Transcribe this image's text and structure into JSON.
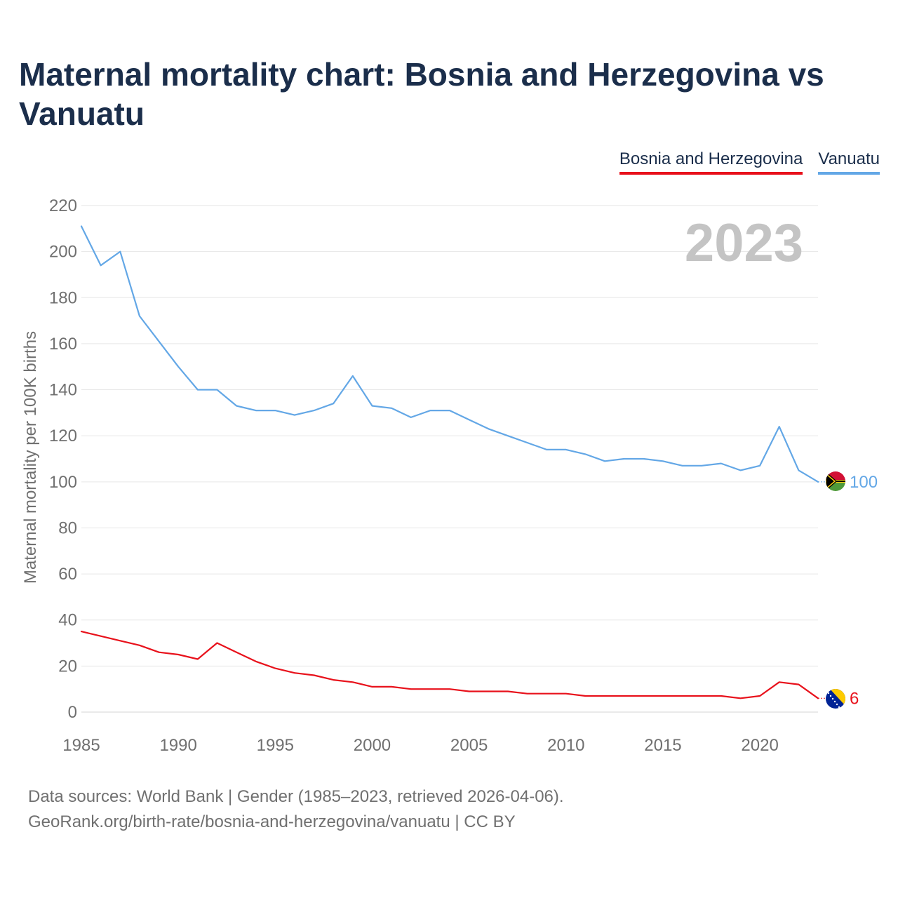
{
  "header": {
    "title": "Maternal mortality chart: Bosnia and Herzegovina vs Vanuatu"
  },
  "legend": {
    "items": [
      {
        "label": "Bosnia and Herzegovina",
        "color": "#e8111b"
      },
      {
        "label": "Vanuatu",
        "color": "#63a7e6"
      }
    ]
  },
  "footer": {
    "line1": "Data sources: World Bank | Gender (1985–2023, retrieved 2026-04-06).",
    "line2": "GeoRank.org/birth-rate/bosnia-and-herzegovina/vanuatu | CC BY"
  },
  "chart_data": {
    "type": "line",
    "title": "Maternal mortality chart: Bosnia and Herzegovina vs Vanuatu",
    "xlabel": "",
    "ylabel": "Maternal mortality per 100K births",
    "year_watermark": "2023",
    "xlim": [
      1985,
      2023
    ],
    "ylim": [
      0,
      220
    ],
    "x_ticks": [
      1985,
      1990,
      1995,
      2000,
      2005,
      2010,
      2015,
      2020
    ],
    "y_ticks": [
      0,
      20,
      40,
      60,
      80,
      100,
      120,
      140,
      160,
      180,
      200,
      220
    ],
    "grid": true,
    "legend_position": "top-right",
    "x": [
      1985,
      1986,
      1987,
      1988,
      1989,
      1990,
      1991,
      1992,
      1993,
      1994,
      1995,
      1996,
      1997,
      1998,
      1999,
      2000,
      2001,
      2002,
      2003,
      2004,
      2005,
      2006,
      2007,
      2008,
      2009,
      2010,
      2011,
      2012,
      2013,
      2014,
      2015,
      2016,
      2017,
      2018,
      2019,
      2020,
      2021,
      2022,
      2023
    ],
    "series": [
      {
        "name": "Vanuatu",
        "color": "#63a7e6",
        "end_label": "100",
        "flag": "vanuatu-flag",
        "values": [
          211,
          194,
          200,
          172,
          161,
          150,
          140,
          140,
          133,
          131,
          131,
          129,
          131,
          134,
          146,
          133,
          132,
          128,
          131,
          131,
          127,
          123,
          120,
          117,
          114,
          114,
          112,
          109,
          110,
          110,
          109,
          107,
          107,
          108,
          105,
          107,
          124,
          105,
          100
        ]
      },
      {
        "name": "Bosnia and Herzegovina",
        "color": "#e8111b",
        "end_label": "6",
        "flag": "bosnia-and-herzegovina-flag",
        "values": [
          35,
          33,
          31,
          29,
          26,
          25,
          23,
          30,
          26,
          22,
          19,
          17,
          16,
          14,
          13,
          11,
          11,
          10,
          10,
          10,
          9,
          9,
          9,
          8,
          8,
          8,
          7,
          7,
          7,
          7,
          7,
          7,
          7,
          7,
          6,
          7,
          13,
          12,
          6
        ]
      }
    ]
  }
}
